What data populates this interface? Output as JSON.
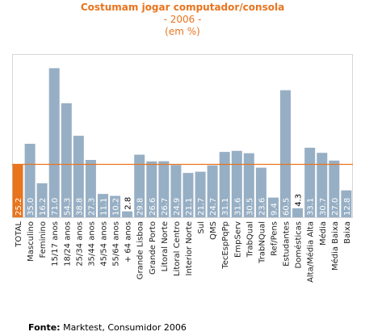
{
  "chart_data": {
    "type": "bar",
    "title": "Costumam jogar computador/consola",
    "subtitle_year": "- 2006 -",
    "subtitle_unit": "(em %)",
    "categories": [
      "TOTAL",
      "Masculino",
      "Feminino",
      "15/17 anos",
      "18/24 anos",
      "25/34 anos",
      "35/44 anos",
      "45/54 anos",
      "55/64 anos",
      "+ 64 anos",
      "Grande Lisboa",
      "Grande Porto",
      "Litoral Norte",
      "Litoral Centro",
      "Interior Norte",
      "Sul",
      "QMS",
      "TecEspPqPp",
      "EmpServ",
      "TrabQual",
      "TrabNQual",
      "Ref/Pens",
      "Estudantes",
      "Domésticas",
      "Alta/Média Alta",
      "Média",
      "Média Baixa",
      "Baixa"
    ],
    "values": [
      25.2,
      35.0,
      16.2,
      71.0,
      54.3,
      38.8,
      27.3,
      11.1,
      10.2,
      2.8,
      29.8,
      26.6,
      26.7,
      24.9,
      21.1,
      21.7,
      24.7,
      31.1,
      31.6,
      30.5,
      23.6,
      9.4,
      60.5,
      4.3,
      33.1,
      30.7,
      27.0,
      12.8
    ],
    "value_labels": [
      "25.2",
      "35.0",
      "16.2",
      "71.0",
      "54.3",
      "38.8",
      "27.3",
      "11.1",
      "10.2",
      "2.8",
      "29.8",
      "26.6",
      "26.7",
      "24.9",
      "21.1",
      "21.7",
      "24.7",
      "31.1",
      "31.6",
      "30.5",
      "23.6",
      "9.4",
      "60.5",
      "4.3",
      "33.1",
      "30.7",
      "27.0",
      "12.8"
    ],
    "reference_line": 25.2,
    "ylim": [
      0,
      80
    ],
    "grid": false,
    "colors": {
      "bar": "#97afc4",
      "highlight_bar": "#e8741e",
      "reference_line": "#e8741e",
      "title": "#e8741e",
      "label_inside": "#ffffff",
      "label_outside": "#000000"
    }
  },
  "source": {
    "label": "Fonte:",
    "text": " Marktest, Consumidor 2006"
  }
}
